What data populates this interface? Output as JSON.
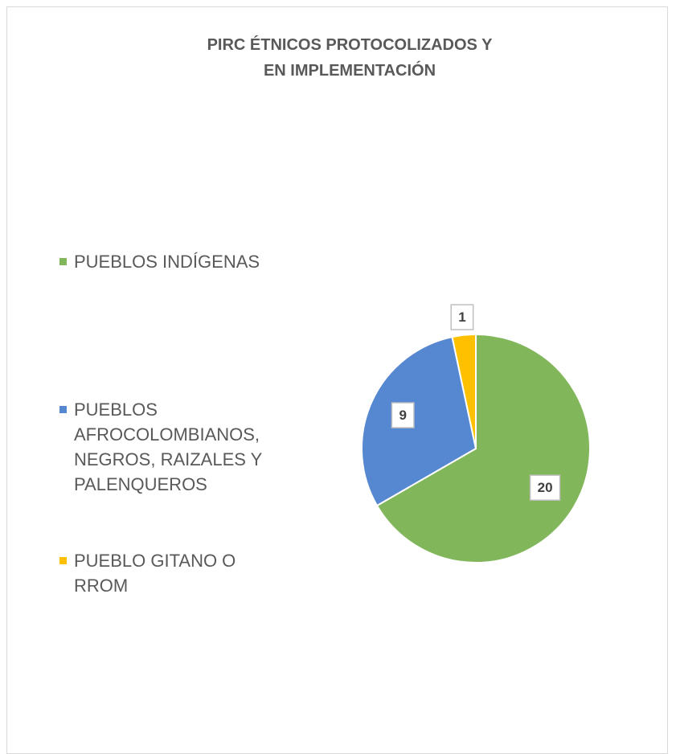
{
  "chart_data": {
    "type": "pie",
    "title": "PIRC ÉTNICOS PROTOCOLIZADOS Y EN IMPLEMENTACIÓN",
    "categories": [
      "PUEBLOS INDÍGENAS",
      "PUEBLOS AFROCOLOMBIANOS, NEGROS, RAIZALES Y PALENQUEROS",
      "PUEBLO GITANO O RROM"
    ],
    "values": [
      20,
      9,
      1
    ],
    "colors": [
      "#82b65b",
      "#5687d1",
      "#ffc000"
    ],
    "legend": "left"
  }
}
